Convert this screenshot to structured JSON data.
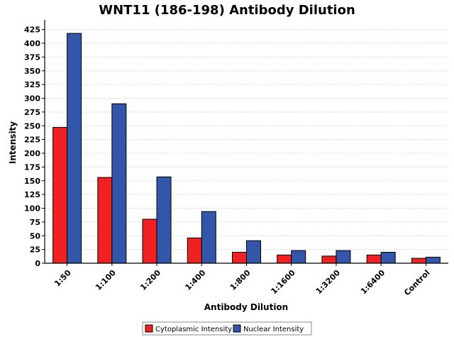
{
  "chart_data": {
    "type": "bar",
    "title": "WNT11 (186-198) Antibody Dilution",
    "xlabel": "Antibody Dilution",
    "ylabel": "Intensity",
    "categories": [
      "1:50",
      "1:100",
      "1:200",
      "1:400",
      "1:800",
      "1:1600",
      "1:3200",
      "1:6400",
      "Control"
    ],
    "series": [
      {
        "name": "Cytoplasmic Intensity",
        "color": "#ee2222",
        "values": [
          247,
          156,
          80,
          46,
          20,
          15,
          13,
          15,
          9
        ]
      },
      {
        "name": "Nuclear Intensity",
        "color": "#3355aa",
        "values": [
          418,
          290,
          157,
          94,
          41,
          23,
          23,
          20,
          11
        ]
      }
    ],
    "ylim": [
      0,
      440
    ],
    "yticks": [
      0,
      25,
      50,
      75,
      100,
      125,
      150,
      175,
      200,
      225,
      250,
      275,
      300,
      325,
      350,
      375,
      400,
      425
    ],
    "grid": true,
    "legend_position": "bottom"
  }
}
